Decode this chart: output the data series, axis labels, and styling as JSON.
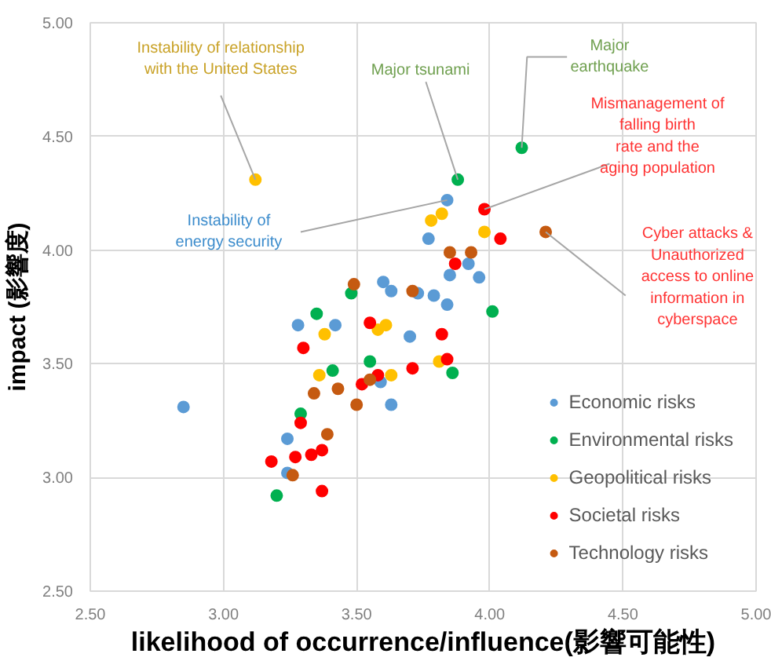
{
  "chart_data": {
    "type": "scatter",
    "xlabel": "likelihood of occurrence/influence(影響可能性)",
    "ylabel": "impact (影響度)",
    "xlim": [
      2.5,
      5.0
    ],
    "ylim": [
      2.5,
      5.0
    ],
    "xticks": [
      {
        "value": 2.5,
        "label": "2.50"
      },
      {
        "value": 3.0,
        "label": "3.00"
      },
      {
        "value": 3.5,
        "label": "3.50"
      },
      {
        "value": 4.0,
        "label": "4.00"
      },
      {
        "value": 4.5,
        "label": "4.50"
      },
      {
        "value": 5.0,
        "label": "5.00"
      }
    ],
    "yticks": [
      {
        "value": 2.5,
        "label": "2.50"
      },
      {
        "value": 3.0,
        "label": "3.00"
      },
      {
        "value": 3.5,
        "label": "3.50"
      },
      {
        "value": 4.0,
        "label": "4.00"
      },
      {
        "value": 4.5,
        "label": "4.50"
      },
      {
        "value": 5.0,
        "label": "5.00"
      }
    ],
    "grid": true,
    "legend": "bottom right",
    "marker": "circle",
    "series": [
      {
        "name": "Economic risks",
        "color": "#5b9bd5",
        "x": [
          2.85,
          3.84,
          3.77,
          3.92,
          3.85,
          3.96,
          3.6,
          3.63,
          3.73,
          3.79,
          3.84,
          3.7,
          3.59,
          3.63,
          3.42,
          3.28,
          3.24,
          3.24
        ],
        "values": [
          3.31,
          4.22,
          4.05,
          3.94,
          3.89,
          3.88,
          3.86,
          3.82,
          3.81,
          3.8,
          3.76,
          3.62,
          3.42,
          3.32,
          3.67,
          3.67,
          3.17,
          3.02
        ]
      },
      {
        "name": "Environmental risks",
        "color": "#00b050",
        "x": [
          4.12,
          3.88,
          3.48,
          4.01,
          3.35,
          3.55,
          3.41,
          3.29,
          3.2,
          3.86
        ],
        "values": [
          4.45,
          4.31,
          3.81,
          3.73,
          3.72,
          3.51,
          3.47,
          3.28,
          2.92,
          3.46
        ]
      },
      {
        "name": "Geopolitical risks",
        "color": "#ffc000",
        "x": [
          3.12,
          3.78,
          3.82,
          3.98,
          3.61,
          3.58,
          3.38,
          3.36,
          3.63,
          3.81
        ],
        "values": [
          4.31,
          4.13,
          4.16,
          4.08,
          3.67,
          3.65,
          3.63,
          3.45,
          3.45,
          3.51
        ]
      },
      {
        "name": "Societal risks",
        "color": "#ff0000",
        "x": [
          3.98,
          4.04,
          3.87,
          3.55,
          3.82,
          3.84,
          3.71,
          3.58,
          3.52,
          3.3,
          3.29,
          3.18,
          3.27,
          3.33,
          3.37,
          3.37
        ],
        "values": [
          4.18,
          4.05,
          3.94,
          3.68,
          3.63,
          3.52,
          3.48,
          3.45,
          3.41,
          3.57,
          3.24,
          3.07,
          3.09,
          3.1,
          3.12,
          2.94
        ]
      },
      {
        "name": "Technology risks",
        "color": "#c55a11",
        "x": [
          4.21,
          3.85,
          3.93,
          3.49,
          3.71,
          3.55,
          3.43,
          3.34,
          3.5,
          3.39,
          3.26
        ],
        "values": [
          4.08,
          3.99,
          3.99,
          3.85,
          3.82,
          3.43,
          3.39,
          3.37,
          3.32,
          3.19,
          3.01
        ]
      }
    ],
    "annotations": [
      {
        "text": "Instability of relationship with the United States",
        "x": 3.12,
        "y": 4.31
      },
      {
        "text": "Major tsunami",
        "x": 3.88,
        "y": 4.31
      },
      {
        "text": "Major earthquake",
        "x": 4.12,
        "y": 4.45
      },
      {
        "text": "Mismanagement of falling birth rate and the aging population",
        "x": 3.98,
        "y": 4.18
      },
      {
        "text": "Instability of energy security",
        "x": 3.84,
        "y": 4.22
      },
      {
        "text": "Cyber attacks & Unauthorized access to online information in cyberspace",
        "x": 4.21,
        "y": 4.08
      }
    ]
  }
}
